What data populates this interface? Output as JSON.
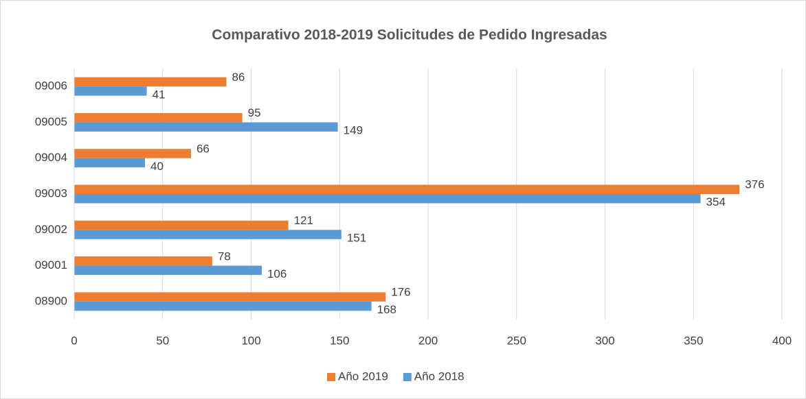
{
  "chart_data": {
    "type": "hbar",
    "title": "Comparativo 2018-2019 Solicitudes de Pedido Ingresadas",
    "categories": [
      "08900",
      "09001",
      "09002",
      "09003",
      "09004",
      "09005",
      "09006"
    ],
    "series": [
      {
        "name": "Año 2019",
        "color": "#ed7d31",
        "values": [
          176,
          78,
          121,
          376,
          66,
          95,
          86
        ]
      },
      {
        "name": "Año 2018",
        "color": "#5b9bd5",
        "values": [
          168,
          106,
          151,
          354,
          40,
          149,
          41
        ]
      }
    ],
    "xlim": [
      0,
      400
    ],
    "xticks": [
      0,
      50,
      100,
      150,
      200,
      250,
      300,
      350,
      400
    ],
    "grid": true,
    "legend": "bottom"
  }
}
